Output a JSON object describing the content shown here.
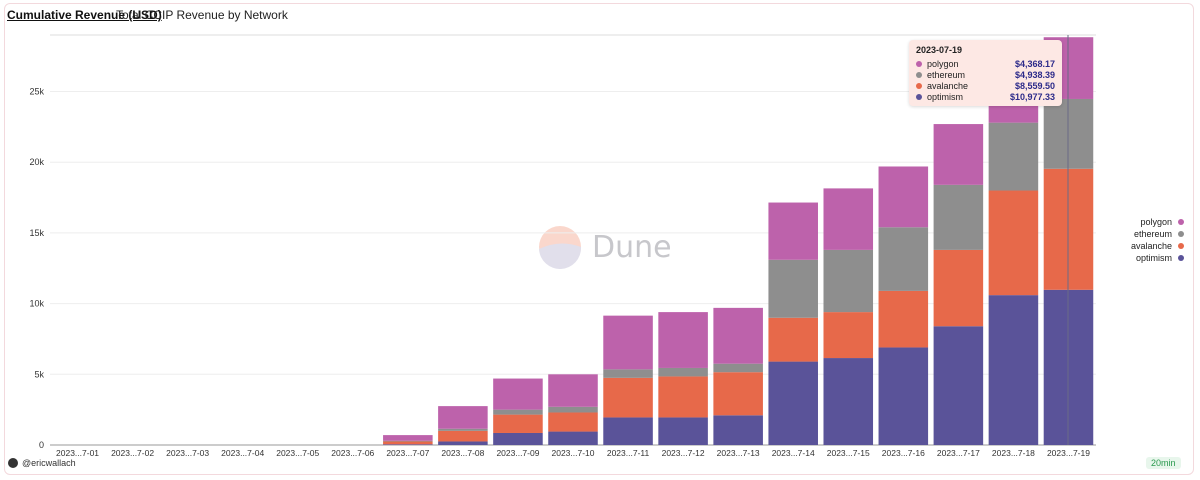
{
  "header": {
    "title": "Cumulative Revenue (USD)",
    "subtitle": "Total CCIP Revenue by Network"
  },
  "watermark": {
    "text": "Dune"
  },
  "footer": {
    "author": "@ericwallach",
    "refresh_badge": "20min"
  },
  "colors": {
    "optimism": "#5a5399",
    "avalanche": "#e7694a",
    "ethereum": "#8e8e8e",
    "polygon": "#bd62ab"
  },
  "tooltip": {
    "date": "2023-07-19",
    "rows": [
      {
        "name": "polygon",
        "value": "$4,368.17"
      },
      {
        "name": "ethereum",
        "value": "$4,938.39"
      },
      {
        "name": "avalanche",
        "value": "$8,559.50"
      },
      {
        "name": "optimism",
        "value": "$10,977.33"
      }
    ]
  },
  "legend": [
    "polygon",
    "ethereum",
    "avalanche",
    "optimism"
  ],
  "chart_data": {
    "type": "bar",
    "stacked": true,
    "title": "Cumulative Revenue (USD)",
    "subtitle": "Total CCIP Revenue by Network",
    "categories": [
      "2023...7-01",
      "2023...7-02",
      "2023...7-03",
      "2023...7-04",
      "2023...7-05",
      "2023...7-06",
      "2023...7-07",
      "2023...7-08",
      "2023...7-09",
      "2023...7-10",
      "2023...7-11",
      "2023...7-12",
      "2023...7-13",
      "2023...7-14",
      "2023...7-15",
      "2023...7-16",
      "2023...7-17",
      "2023...7-18",
      "2023...7-19"
    ],
    "series": [
      {
        "name": "optimism",
        "values": [
          0,
          0,
          0,
          0,
          0,
          0,
          50,
          250,
          850,
          950,
          1950,
          1950,
          2100,
          5900,
          6150,
          6900,
          8400,
          10600,
          10977.33
        ]
      },
      {
        "name": "avalanche",
        "values": [
          0,
          0,
          0,
          0,
          0,
          0,
          200,
          750,
          1300,
          1350,
          2800,
          2900,
          3050,
          3100,
          3250,
          4000,
          5400,
          7400,
          8559.5
        ]
      },
      {
        "name": "ethereum",
        "values": [
          0,
          0,
          0,
          0,
          0,
          0,
          50,
          150,
          350,
          400,
          600,
          600,
          600,
          4100,
          4400,
          4500,
          4600,
          4800,
          4938.39
        ]
      },
      {
        "name": "polygon",
        "values": [
          0,
          0,
          0,
          0,
          0,
          0,
          400,
          1600,
          2200,
          2300,
          3800,
          3950,
          3950,
          4050,
          4350,
          4300,
          4300,
          4800,
          4368.17
        ]
      }
    ],
    "y_ticks": [
      "0",
      "5k",
      "10k",
      "15k",
      "20k",
      "25k"
    ],
    "ylim": [
      0,
      29000
    ],
    "legend_position": "right",
    "grid": true
  }
}
